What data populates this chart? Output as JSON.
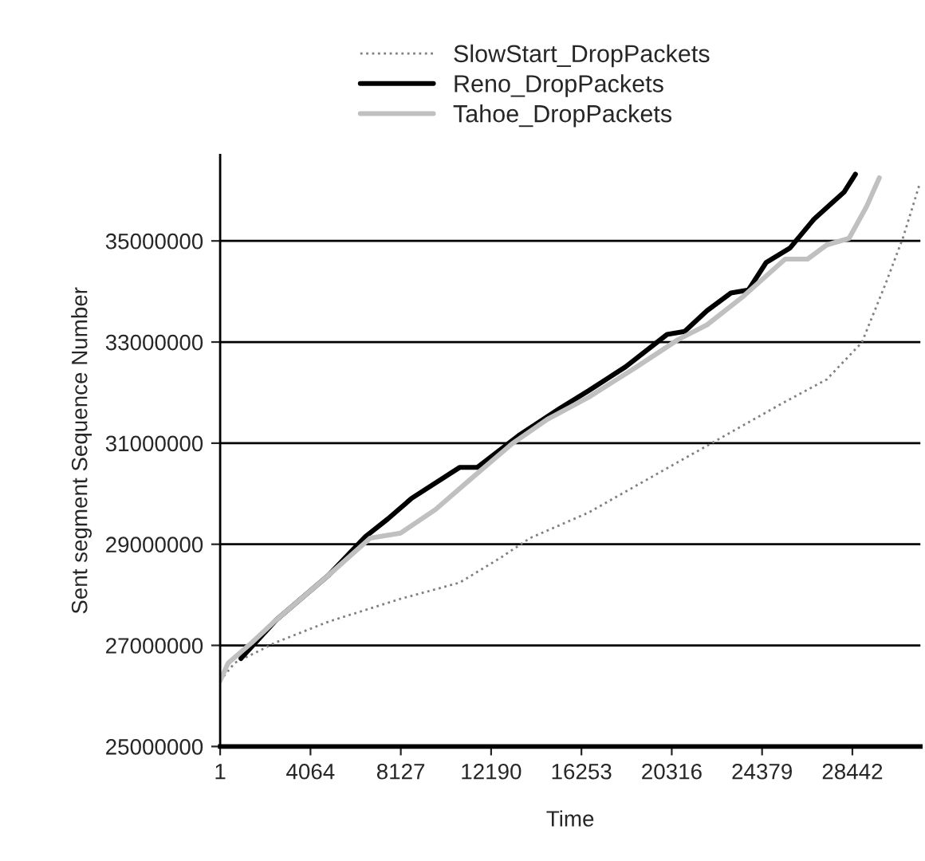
{
  "chart_data": {
    "type": "line",
    "xlabel": "Time",
    "ylabel": "Sent segment Sequence Number",
    "xlim": [
      1,
      31500
    ],
    "xticks": [
      1,
      4064,
      8127,
      12190,
      16253,
      20316,
      24379,
      28442
    ],
    "ylim": [
      25000000,
      36700000
    ],
    "yticks": [
      25000000,
      27000000,
      29000000,
      31000000,
      33000000,
      35000000
    ],
    "grid": "y",
    "legend": "top",
    "marker": "none",
    "series": [
      {
        "name": "SlowStart_DropPackets",
        "color": "#808080",
        "line_style": "dotted",
        "x": [
          1,
          647,
          2514,
          4883,
          8114,
          10771,
          12638,
          13931,
          16587,
          19243,
          22474,
          25131,
          27285,
          28865,
          29942,
          30732,
          31450
        ],
        "values": [
          26300000,
          26650000,
          27060000,
          27470000,
          27920000,
          28240000,
          28740000,
          29120000,
          29630000,
          30290000,
          31090000,
          31750000,
          32260000,
          32990000,
          34160000,
          35080000,
          36100000
        ]
      },
      {
        "name": "Reno_DropPackets",
        "color": "#000000",
        "line_style": "solid",
        "x": [
          934,
          2514,
          4883,
          6535,
          7540,
          8617,
          10771,
          11561,
          13428,
          15294,
          16587,
          18238,
          20105,
          20895,
          21900,
          22977,
          23767,
          24557,
          25634,
          26711,
          28075,
          28578
        ],
        "values": [
          26740000,
          27500000,
          28390000,
          29150000,
          29500000,
          29910000,
          30520000,
          30520000,
          31150000,
          31690000,
          32040000,
          32510000,
          33150000,
          33210000,
          33620000,
          33970000,
          34030000,
          34570000,
          34860000,
          35430000,
          35970000,
          36320000
        ]
      },
      {
        "name": "Tahoe_DropPackets",
        "color": "#c0c0c0",
        "line_style": "solid",
        "x": [
          1,
          360,
          1437,
          2514,
          4883,
          6750,
          8114,
          9694,
          11273,
          13140,
          14720,
          16587,
          18741,
          20608,
          21900,
          23552,
          25418,
          26424,
          27285,
          28290,
          29080,
          29654
        ],
        "values": [
          26300000,
          26650000,
          27060000,
          27500000,
          28390000,
          29120000,
          29220000,
          29690000,
          30290000,
          30990000,
          31470000,
          31910000,
          32510000,
          33050000,
          33340000,
          33910000,
          34640000,
          34640000,
          34920000,
          35050000,
          35680000,
          36250000
        ]
      }
    ]
  }
}
